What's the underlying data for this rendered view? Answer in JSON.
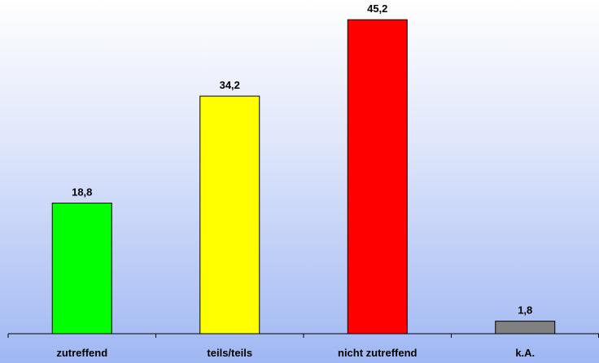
{
  "chart_data": {
    "type": "bar",
    "categories": [
      "zutreffend",
      "teils/teils",
      "nicht zutreffend",
      "k.A."
    ],
    "values": [
      18.8,
      34.2,
      45.2,
      1.8
    ],
    "value_labels": [
      "18,8",
      "34,2",
      "45,2",
      "1,8"
    ],
    "colors": [
      "#00ff00",
      "#ffff00",
      "#ff0000",
      "#808080"
    ],
    "title": "",
    "xlabel": "",
    "ylabel": "",
    "ylim": [
      0,
      50
    ],
    "grid": false,
    "legend": "none"
  }
}
